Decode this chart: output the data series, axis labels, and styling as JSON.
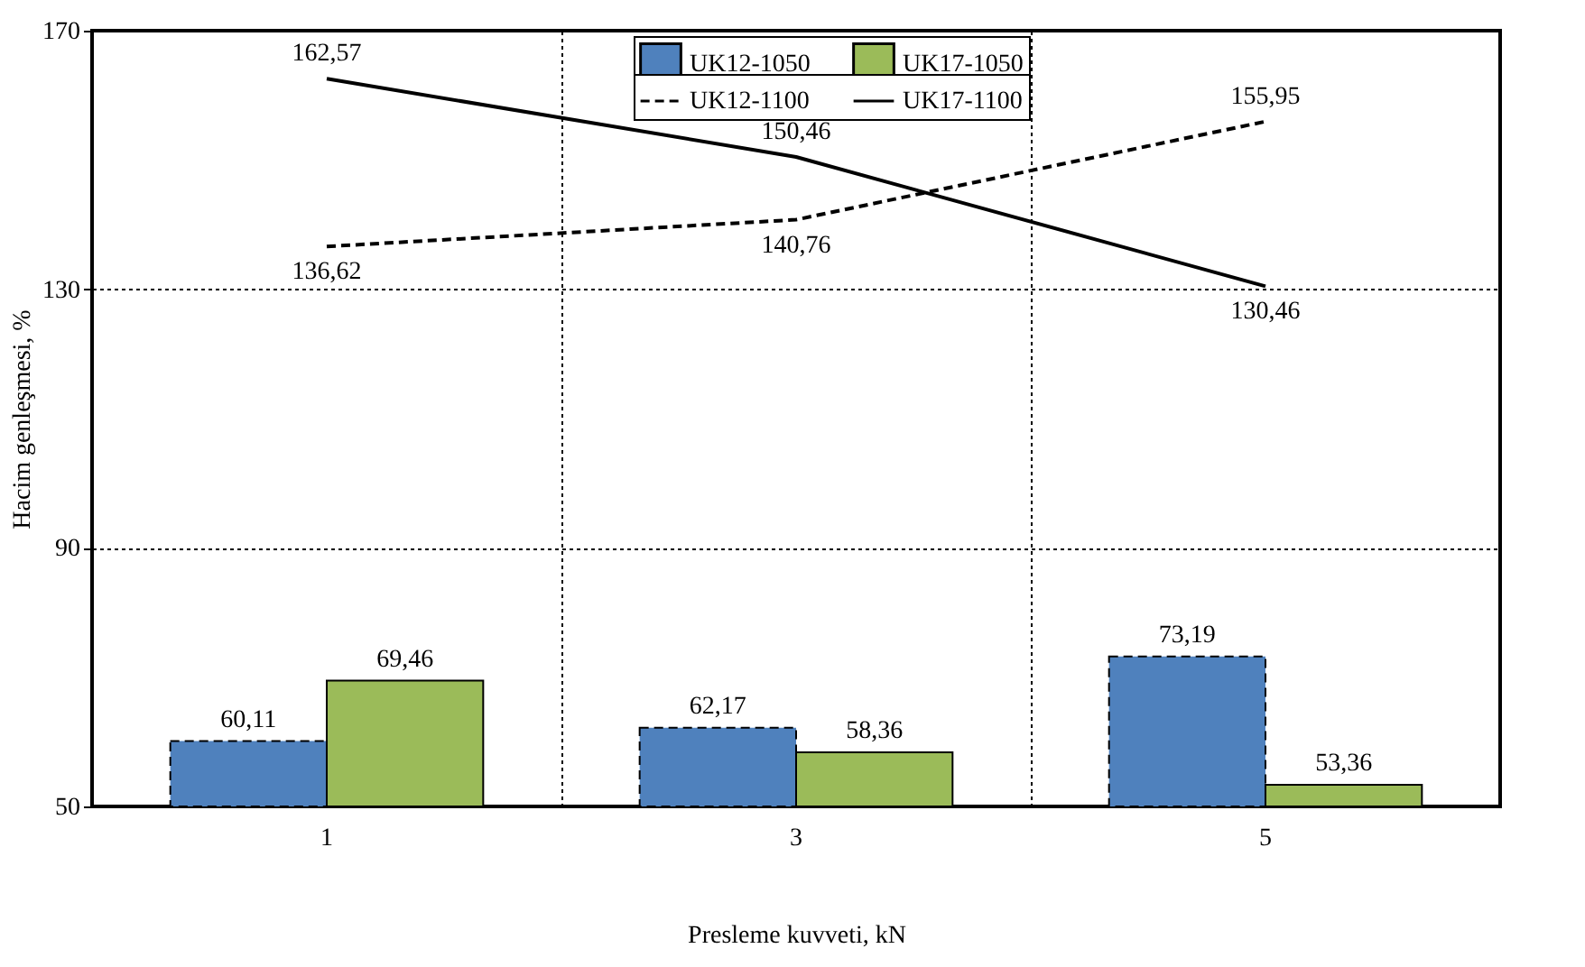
{
  "chart_data": {
    "type": "bar",
    "xlabel": "Presleme kuvveti, kN",
    "ylabel": "Hacim genleşmesi, %",
    "categories": [
      "1",
      "3",
      "5"
    ],
    "series": [
      {
        "name": "UK12-1050",
        "color": "#4f81bd",
        "line_style": "dashed",
        "values": [
          60.11,
          62.17,
          73.19
        ],
        "value_labels": [
          "60,11",
          "62,17",
          "73,19"
        ]
      },
      {
        "name": "UK17-1050",
        "color": "#9bbb59",
        "line_style": "solid",
        "values": [
          69.46,
          58.36,
          53.36
        ],
        "value_labels": [
          "69,46",
          "58,36",
          "53,36"
        ]
      },
      {
        "name": "UK12-1100",
        "type": "line",
        "color": "#000000",
        "line_style": "dashed",
        "values": [
          136.62,
          140.76,
          155.95
        ],
        "value_labels": [
          "136,62",
          "140,76",
          "155,95"
        ]
      },
      {
        "name": "UK17-1100",
        "type": "line",
        "color": "#000000",
        "line_style": "solid",
        "values": [
          162.57,
          150.46,
          130.46
        ],
        "value_labels": [
          "162,57",
          "150,46",
          "130,46"
        ]
      }
    ],
    "ylim": [
      50,
      170
    ],
    "yticks": [
      50,
      90,
      130,
      170
    ],
    "grid": true,
    "legend": "top"
  }
}
